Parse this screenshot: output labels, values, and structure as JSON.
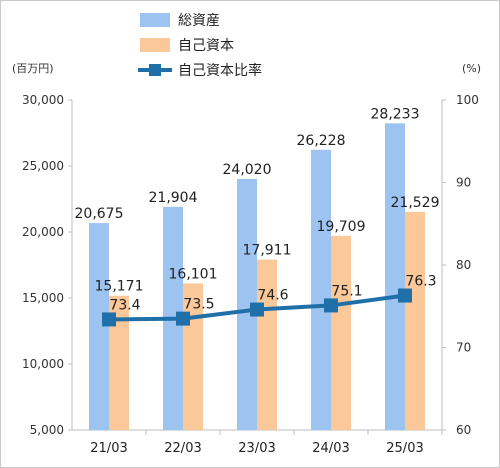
{
  "chart_data": {
    "type": "bar",
    "categories": [
      "21/03",
      "22/03",
      "23/03",
      "24/03",
      "25/03"
    ],
    "series": [
      {
        "name": "総資産",
        "kind": "bar",
        "axis": "left",
        "color": "#9dc3f0",
        "values": [
          20675,
          21904,
          24020,
          26228,
          28233
        ]
      },
      {
        "name": "自己資本",
        "kind": "bar",
        "axis": "left",
        "color": "#fbc899",
        "values": [
          15171,
          16101,
          17911,
          19709,
          21529
        ]
      },
      {
        "name": "自己資本比率",
        "kind": "line",
        "axis": "right",
        "color": "#1f6fa8",
        "values": [
          73.4,
          73.5,
          74.6,
          75.1,
          76.3
        ]
      }
    ],
    "y_left": {
      "unit": "(百万円)",
      "range": [
        5000,
        30000
      ],
      "ticks": [
        "5,000",
        "10,000",
        "15,000",
        "20,000",
        "25,000",
        "30,000"
      ]
    },
    "y_right": {
      "unit": "(%)",
      "range": [
        60,
        100
      ],
      "ticks": [
        "60",
        "70",
        "80",
        "90",
        "100"
      ]
    },
    "bar_labels": {
      "total_assets": [
        "20,675",
        "21,904",
        "24,020",
        "26,228",
        "28,233"
      ],
      "equity": [
        "15,171",
        "16,101",
        "17,911",
        "19,709",
        "21,529"
      ]
    },
    "ratio_labels": [
      "73.4",
      "73.5",
      "74.6",
      "75.1",
      "76.3"
    ],
    "legend_position": "top-center",
    "grid": false
  }
}
